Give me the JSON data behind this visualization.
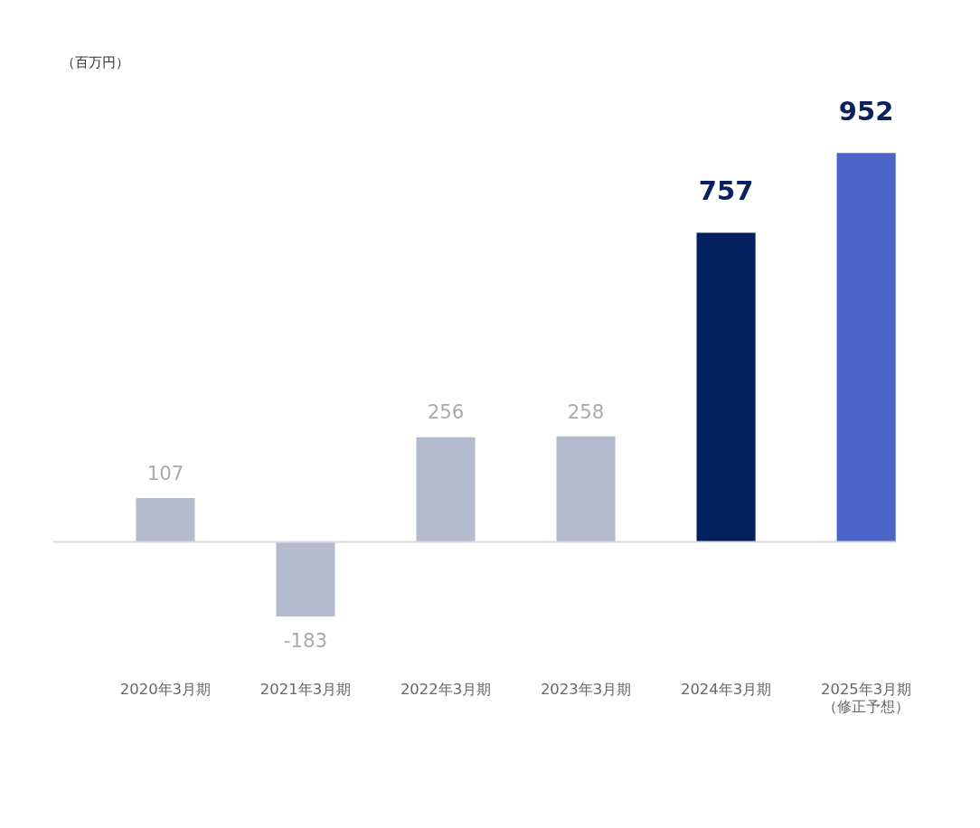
{
  "chart_data": {
    "type": "bar",
    "annotations": [
      "（百万円）"
    ],
    "categories": [
      "2020年3月期",
      "2021年3月期",
      "2022年3月期",
      "2023年3月期",
      "2024年3月期",
      "2025年3月期（修正予想）"
    ],
    "values": [
      107,
      -183,
      256,
      258,
      757,
      952
    ],
    "colors": [
      "#b3bccf",
      "#b3bccf",
      "#b3bccf",
      "#b3bccf",
      "#03215f",
      "#4a64c8"
    ],
    "data_labels": true,
    "grid": false
  }
}
